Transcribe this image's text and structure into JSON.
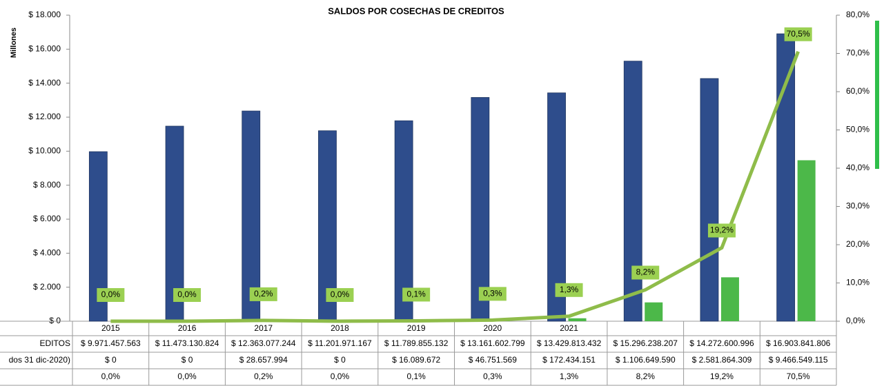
{
  "chart_data": {
    "type": "bar",
    "title": "SALDOS POR COSECHAS DE CREDITOS",
    "y_label": "Millones",
    "categories": [
      "2015",
      "2016",
      "2017",
      "2018",
      "2019",
      "2020",
      "2021",
      null,
      null,
      null
    ],
    "ylim": [
      0,
      18000
    ],
    "yticks": [
      {
        "value": 0,
        "label": "$ 0"
      },
      {
        "value": 2000,
        "label": "$ 2.000"
      },
      {
        "value": 4000,
        "label": "$ 4.000"
      },
      {
        "value": 6000,
        "label": "$ 6.000"
      },
      {
        "value": 8000,
        "label": "$ 8.000"
      },
      {
        "value": 10000,
        "label": "$ 10.000"
      },
      {
        "value": 12000,
        "label": "$ 12.000"
      },
      {
        "value": 14000,
        "label": "$ 14.000"
      },
      {
        "value": 16000,
        "label": "$ 16.000"
      },
      {
        "value": 18000,
        "label": "$ 18.000"
      }
    ],
    "y2lim": [
      0,
      80
    ],
    "y2ticks": [
      {
        "value": 0,
        "label": "0,0%"
      },
      {
        "value": 10,
        "label": "10,0%"
      },
      {
        "value": 20,
        "label": "20,0%"
      },
      {
        "value": 30,
        "label": "30,0%"
      },
      {
        "value": 40,
        "label": "40,0%"
      },
      {
        "value": 50,
        "label": "50,0%"
      },
      {
        "value": 60,
        "label": "60,0%"
      },
      {
        "value": 70,
        "label": "70,0%"
      },
      {
        "value": 80,
        "label": "80,0%"
      }
    ],
    "series": [
      {
        "name": "EDITOS",
        "color": "#2e4d8c",
        "type": "bar",
        "values": [
          9971.457563,
          11473.130824,
          12363.077244,
          11201.971167,
          11789.855132,
          13161.602799,
          13429.813432,
          15296.238207,
          14272.600996,
          16903.841806
        ],
        "value_labels": [
          "$ 9.971.457.563",
          "$ 11.473.130.824",
          "$ 12.363.077.244",
          "$ 11.201.971.167",
          "$ 11.789.855.132",
          "$ 13.161.602.799",
          "$ 13.429.813.432",
          "$ 15.296.238.207",
          "$ 14.272.600.996",
          "$ 16.903.841.806"
        ]
      },
      {
        "name": "dos 31 dic-2020)",
        "color": "#4cb849",
        "type": "bar",
        "values": [
          0,
          0,
          28.657994,
          0,
          16.089672,
          46.751569,
          172.434151,
          1106.64959,
          2581.864309,
          9466.549115
        ],
        "value_labels": [
          "$ 0",
          "$ 0",
          "$ 28.657.994",
          "$ 0",
          "$ 16.089.672",
          "$ 46.751.569",
          "$ 172.434.151",
          "$ 1.106.649.590",
          "$ 2.581.864.309",
          "$ 9.466.549.115"
        ]
      },
      {
        "color": "#8fbc4a",
        "type": "line",
        "axis": "y2",
        "values": [
          0.0,
          0.0,
          0.2,
          0.0,
          0.1,
          0.3,
          1.3,
          8.2,
          19.2,
          70.5
        ],
        "value_labels": [
          "0,0%",
          "0,0%",
          "0,2%",
          "0,0%",
          "0,1%",
          "0,3%",
          "1,3%",
          "8,2%",
          "19,2%",
          "70,5%"
        ]
      }
    ]
  }
}
